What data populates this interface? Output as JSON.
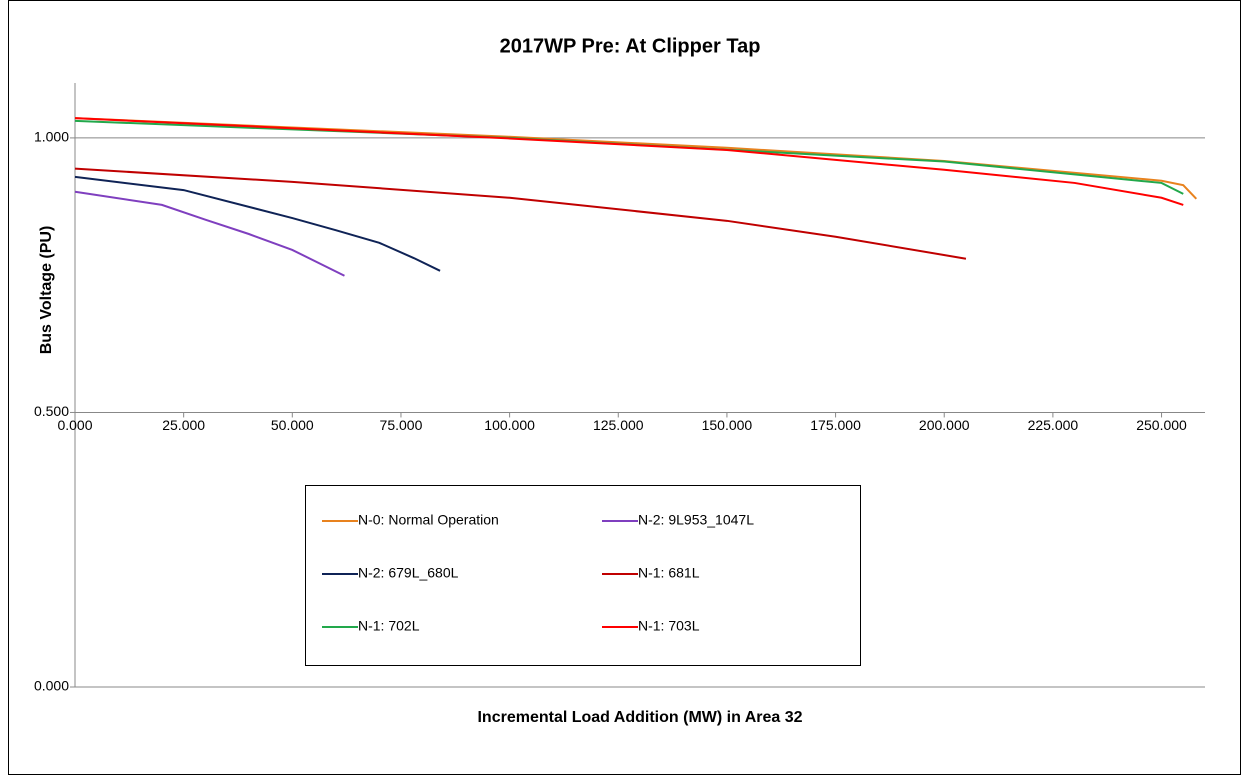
{
  "chart_data": {
    "type": "line",
    "title": "2017WP Pre: At Clipper Tap",
    "x_label": "Incremental Load Addition (MW) in Area 32",
    "y_label": "Bus Voltage (PU)",
    "xlim": [
      0,
      260
    ],
    "xticks": [
      {
        "value": 0,
        "label": "0.000"
      },
      {
        "value": 25,
        "label": "25.000"
      },
      {
        "value": 50,
        "label": "50.000"
      },
      {
        "value": 75,
        "label": "75.000"
      },
      {
        "value": 100,
        "label": "100.000"
      },
      {
        "value": 125,
        "label": "125.000"
      },
      {
        "value": 150,
        "label": "150.000"
      },
      {
        "value": 175,
        "label": "175.000"
      },
      {
        "value": 200,
        "label": "200.000"
      },
      {
        "value": 225,
        "label": "225.000"
      },
      {
        "value": 250,
        "label": "250.000"
      }
    ],
    "ylim": [
      0,
      1.1
    ],
    "yticks": [
      {
        "value": 0,
        "label": "0.000"
      },
      {
        "value": 0.5,
        "label": "0.500"
      },
      {
        "value": 1,
        "label": "1.000"
      }
    ],
    "x_axis_at": 0.5,
    "grid": true,
    "series": [
      {
        "name": "N-0: Normal Operation",
        "color": "#e8821e",
        "x": [
          0,
          100,
          150,
          200,
          250,
          255,
          258
        ],
        "values": [
          1.036,
          1.002,
          0.982,
          0.958,
          0.922,
          0.914,
          0.889
        ]
      },
      {
        "name": "N-2: 9L953_1047L",
        "color": "#7f3fbf",
        "x": [
          0,
          20,
          30,
          40,
          50,
          62
        ],
        "values": [
          0.902,
          0.878,
          0.851,
          0.825,
          0.796,
          0.749
        ]
      },
      {
        "name": "N-2: 679L_680L",
        "color": "#0f2356",
        "x": [
          0,
          25,
          50,
          60,
          70,
          78,
          84
        ],
        "values": [
          0.929,
          0.905,
          0.854,
          0.832,
          0.809,
          0.781,
          0.758
        ]
      },
      {
        "name": "N-1: 681L",
        "color": "#c00000",
        "x": [
          0,
          50,
          100,
          150,
          175,
          205
        ],
        "values": [
          0.944,
          0.92,
          0.891,
          0.849,
          0.82,
          0.78
        ]
      },
      {
        "name": "N-1: 702L",
        "color": "#22a84b",
        "x": [
          0,
          100,
          200,
          250,
          255
        ],
        "values": [
          1.031,
          1.0,
          0.957,
          0.918,
          0.898
        ]
      },
      {
        "name": "N-1: 703L",
        "color": "#ff0000",
        "x": [
          0,
          100,
          150,
          200,
          230,
          250,
          255
        ],
        "values": [
          1.036,
          0.999,
          0.978,
          0.942,
          0.918,
          0.891,
          0.878
        ]
      }
    ]
  }
}
